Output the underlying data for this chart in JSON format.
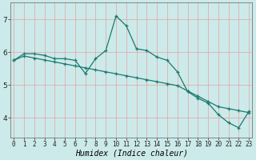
{
  "title": "",
  "xlabel": "Humidex (Indice chaleur)",
  "bg_color": "#cceaea",
  "line_color": "#1a7a6e",
  "grid_color": "#e8a0a0",
  "x_ticks": [
    0,
    1,
    2,
    3,
    4,
    5,
    6,
    7,
    8,
    9,
    10,
    11,
    12,
    13,
    14,
    15,
    16,
    17,
    18,
    19,
    20,
    21,
    22,
    23
  ],
  "y_ticks": [
    4,
    5,
    6,
    7
  ],
  "ylim": [
    3.4,
    7.5
  ],
  "xlim": [
    -0.3,
    23.3
  ],
  "line1_x": [
    0,
    1,
    2,
    3,
    4,
    5,
    6,
    7,
    8,
    9,
    10,
    11,
    12,
    13,
    14,
    15,
    16,
    17,
    18,
    19,
    20,
    21,
    22,
    23
  ],
  "line1_y": [
    5.75,
    5.95,
    5.95,
    5.9,
    5.8,
    5.8,
    5.75,
    5.35,
    5.8,
    6.05,
    7.1,
    6.8,
    6.1,
    6.05,
    5.85,
    5.75,
    5.4,
    4.8,
    4.6,
    4.45,
    4.1,
    3.85,
    3.7,
    4.2
  ],
  "line2_x": [
    0,
    1,
    2,
    3,
    4,
    5,
    6,
    7,
    8,
    9,
    10,
    11,
    12,
    13,
    14,
    15,
    16,
    17,
    18,
    19,
    20,
    21,
    22,
    23
  ],
  "line2_y": [
    5.75,
    5.88,
    5.82,
    5.76,
    5.7,
    5.64,
    5.58,
    5.52,
    5.46,
    5.4,
    5.34,
    5.28,
    5.22,
    5.16,
    5.1,
    5.04,
    4.98,
    4.82,
    4.66,
    4.5,
    4.34,
    4.28,
    4.22,
    4.16
  ],
  "tick_fontsize": 5.5,
  "xlabel_fontsize": 7,
  "ylabel_fontsize": 7,
  "marker_size": 3.5,
  "linewidth": 0.9
}
